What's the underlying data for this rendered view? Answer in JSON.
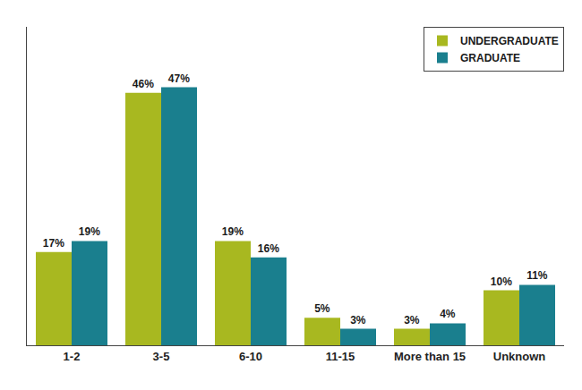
{
  "chart_data": {
    "type": "bar",
    "categories": [
      "1-2",
      "3-5",
      "6-10",
      "11-15",
      "More than 15",
      "Unknown"
    ],
    "series": [
      {
        "name": "UNDERGRADUATE",
        "color": "#a8b820",
        "values": [
          17,
          46,
          19,
          5,
          3,
          10
        ],
        "value_labels": [
          "17%",
          "46%",
          "19%",
          "5%",
          "3%",
          "10%"
        ]
      },
      {
        "name": "GRADUATE",
        "color": "#1a7f8e",
        "values": [
          19,
          47,
          16,
          3,
          4,
          11
        ],
        "value_labels": [
          "19%",
          "47%",
          "16%",
          "3%",
          "4%",
          "11%"
        ]
      }
    ],
    "ylim": [
      0,
      58
    ],
    "grid": false,
    "legend": "upper right",
    "data_labels": true,
    "tick_labels": "x"
  }
}
